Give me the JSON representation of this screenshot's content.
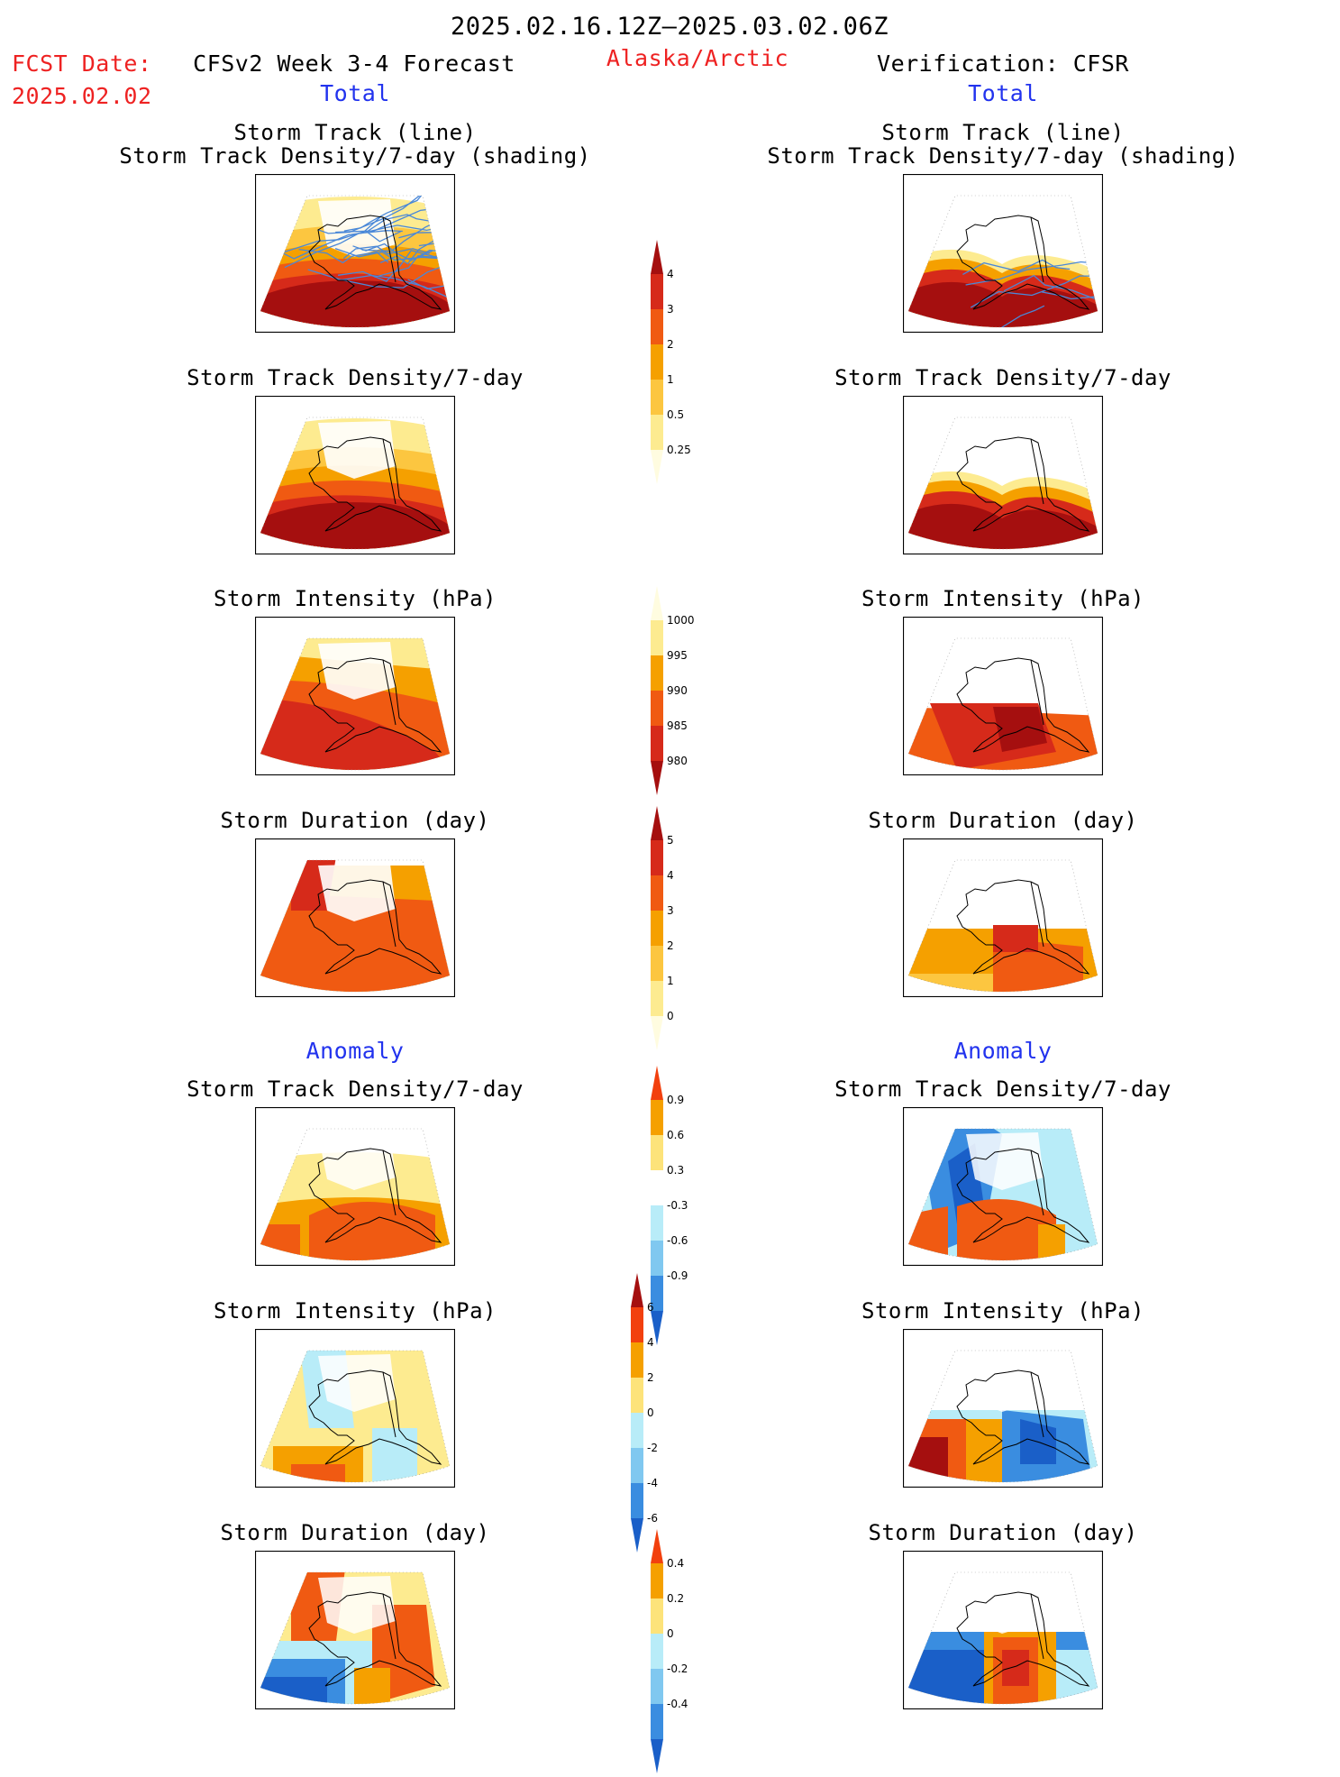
{
  "header": {
    "period": "2025.02.16.12Z–2025.03.02.06Z",
    "fcst_label": "FCST Date:",
    "fcst_date": "2025.02.02",
    "forecast_title": "CFSv2 Week 3-4 Forecast",
    "region": "Alaska/Arctic",
    "verification": "Verification: CFSR"
  },
  "sections": {
    "total": "Total",
    "anomaly": "Anomaly"
  },
  "panel_titles": {
    "track_line": "Storm Track (line)",
    "track_shading": "Storm Track Density/7-day (shading)",
    "density": "Storm Track Density/7-day",
    "intensity": "Storm Intensity (hPa)",
    "duration": "Storm Duration (day)"
  },
  "colorbars": {
    "density": {
      "labels": [
        "4",
        "3",
        "2",
        "1",
        "0.5",
        "0.25"
      ],
      "colors": [
        "#a50f0f",
        "#d62a1a",
        "#f05a12",
        "#f5a000",
        "#fcc640",
        "#fdeb90",
        "#fffce0"
      ]
    },
    "intensity": {
      "labels": [
        "1000",
        "995",
        "990",
        "985",
        "980"
      ],
      "colors": [
        "#fffce0",
        "#fdeb90",
        "#f5a000",
        "#f05a12",
        "#d62a1a",
        "#a50f0f"
      ]
    },
    "duration": {
      "labels": [
        "5",
        "4",
        "3",
        "2",
        "1",
        "0"
      ],
      "colors": [
        "#a50f0f",
        "#d62a1a",
        "#f05a12",
        "#f5a000",
        "#fcc640",
        "#fdeb90",
        "#fffce0"
      ]
    },
    "anom_density": {
      "labels": [
        "0.9",
        "0.6",
        "0.3",
        "-0.3",
        "-0.6",
        "-0.9"
      ],
      "colors": [
        "#f2400e",
        "#f5a000",
        "#fde37a",
        "#ffffff",
        "#b8ecf8",
        "#80c8f0",
        "#3a8de0",
        "#1a5fc8"
      ]
    },
    "anom_intensity": {
      "labels": [
        "6",
        "4",
        "2",
        "0",
        "-2",
        "-4",
        "-6"
      ],
      "colors": [
        "#a50f0f",
        "#f2400e",
        "#f5a000",
        "#fde37a",
        "#b8ecf8",
        "#80c8f0",
        "#3a8de0",
        "#1a5fc8"
      ]
    },
    "anom_duration": {
      "labels": [
        "0.4",
        "0.2",
        "0",
        "-0.2",
        "-0.4"
      ],
      "colors": [
        "#f2400e",
        "#f5a000",
        "#fde37a",
        "#b8ecf8",
        "#80c8f0",
        "#3a8de0",
        "#1a5fc8"
      ]
    }
  },
  "map_palette": {
    "dark_red": "#a50f0f",
    "red": "#d62a1a",
    "orange_red": "#f05a12",
    "orange": "#f5a000",
    "light_orange": "#fcc640",
    "yellow": "#fdeb90",
    "light_blue": "#b8ecf8",
    "blue": "#3a8de0",
    "dark_blue": "#1a5fc8",
    "track_line": "#4a88d8"
  }
}
